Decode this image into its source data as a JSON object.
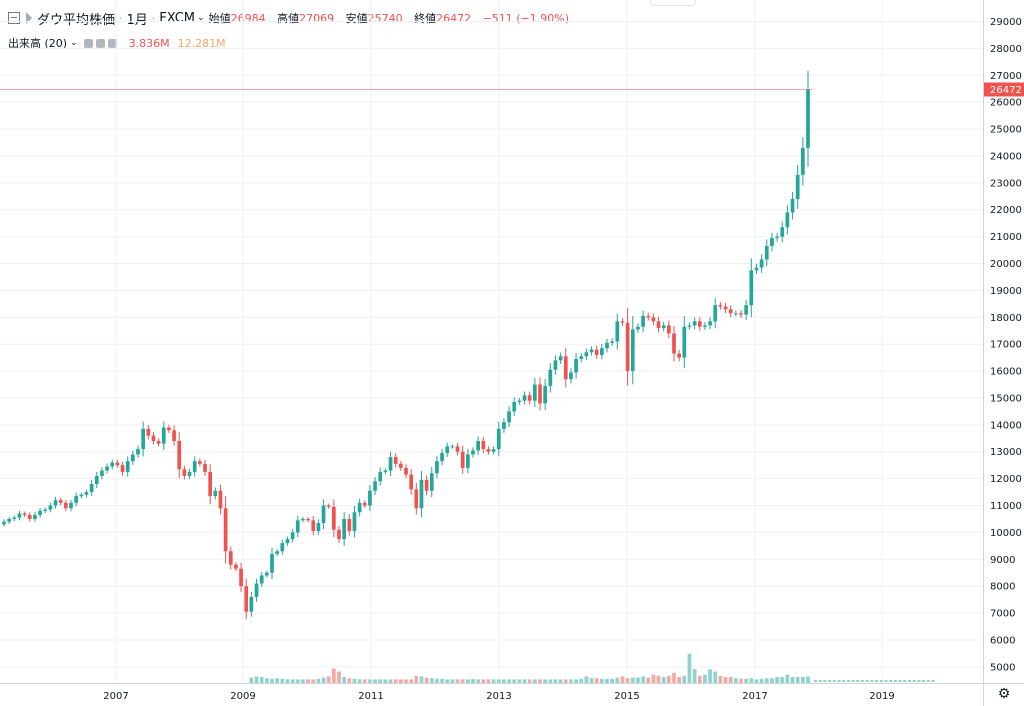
{
  "header": {
    "symbol": "ダウ平均株価",
    "interval": "1月",
    "source": "FXCM",
    "ohlc": [
      {
        "label": "始値",
        "value": "26984"
      },
      {
        "label": "高値",
        "value": "27069"
      },
      {
        "label": "安値",
        "value": "25740"
      },
      {
        "label": "終値",
        "value": "26472"
      }
    ],
    "change": "−511 (−1.90%)"
  },
  "volume": {
    "label": "出来高 (20)",
    "value1": "3.836M",
    "value2": "12.281M"
  },
  "colors": {
    "up": "#26a69a",
    "down": "#ef5350",
    "up_vol": "#8fd3cc",
    "down_vol": "#f4a9a7",
    "grid": "#eef0f3",
    "price_line": "#ef5350"
  },
  "chart_data": {
    "type": "candlestick",
    "interval": "monthly",
    "ylim": [
      4400,
      29800
    ],
    "y_ticks": [
      5000,
      6000,
      7000,
      8000,
      9000,
      10000,
      11000,
      12000,
      13000,
      14000,
      15000,
      16000,
      17000,
      18000,
      19000,
      20000,
      21000,
      22000,
      23000,
      24000,
      25000,
      26000,
      27000,
      28000,
      29000
    ],
    "x_ticks": [
      "2007",
      "2009",
      "2011",
      "2013",
      "2015",
      "2017",
      "2019"
    ],
    "last_price_label": "26472",
    "last_price": 26472,
    "closes": [
      10400,
      10500,
      10550,
      10700,
      10650,
      10500,
      10650,
      10800,
      10850,
      11000,
      11200,
      11100,
      10900,
      11100,
      11350,
      11400,
      11500,
      11800,
      12100,
      12300,
      12450,
      12600,
      12500,
      12250,
      12650,
      12900,
      13100,
      13850,
      13600,
      13400,
      13300,
      13900,
      13800,
      13400,
      12350,
      12100,
      12250,
      12650,
      12550,
      12250,
      11350,
      11550,
      10900,
      9300,
      8800,
      8650,
      8000,
      7050,
      7600,
      8100,
      8400,
      8500,
      9200,
      9300,
      9600,
      9750,
      10000,
      10450,
      10500,
      10450,
      10050,
      10350,
      11000,
      10950,
      10100,
      9750,
      10500,
      10050,
      10750,
      11100,
      11000,
      11550,
      11900,
      12250,
      12300,
      12800,
      12550,
      12400,
      12150,
      11600,
      10900,
      11950,
      11550,
      12200,
      12650,
      12950,
      13200,
      13200,
      13000,
      12400,
      12900,
      13050,
      13400,
      13100,
      13000,
      13100,
      13850,
      14100,
      14500,
      14850,
      14900,
      15100,
      14900,
      15500,
      14800,
      15450,
      16050,
      16400,
      16550,
      15700,
      15950,
      16450,
      16550,
      16700,
      16800,
      16600,
      16850,
      17050,
      17100,
      17850,
      17800,
      16000,
      17550,
      17650,
      18050,
      18000,
      17850,
      17600,
      17700,
      17400,
      16650,
      16500,
      17650,
      17700,
      17850,
      17650,
      17700,
      17850,
      18450,
      18400,
      18300,
      18150,
      18150,
      18100,
      18450,
      19750,
      19850,
      20150,
      20650,
      20950,
      21000,
      21350,
      21900,
      22400,
      23300,
      24300,
      26472
    ],
    "volume": [
      0,
      0,
      0,
      0,
      0,
      0,
      0,
      0,
      0,
      0,
      0,
      0,
      0,
      0,
      0,
      0,
      0,
      0,
      0,
      0,
      0,
      0,
      0,
      0,
      0,
      0,
      0,
      0,
      0,
      0,
      0,
      0,
      0,
      0,
      0,
      0,
      0,
      0,
      0,
      0,
      0,
      0,
      0,
      0,
      0,
      0,
      0,
      0,
      0.18,
      0.22,
      0.2,
      0.16,
      0.14,
      0.16,
      0.14,
      0.12,
      0.12,
      0.12,
      0.12,
      0.12,
      0.12,
      0.14,
      0.18,
      0.22,
      0.48,
      0.38,
      0.2,
      0.16,
      0.14,
      0.12,
      0.12,
      0.12,
      0.12,
      0.12,
      0.12,
      0.12,
      0.12,
      0.12,
      0.12,
      0.12,
      0.24,
      0.22,
      0.18,
      0.16,
      0.14,
      0.14,
      0.12,
      0.12,
      0.12,
      0.12,
      0.12,
      0.14,
      0.12,
      0.12,
      0.12,
      0.12,
      0.12,
      0.12,
      0.12,
      0.12,
      0.12,
      0.12,
      0.12,
      0.12,
      0.12,
      0.12,
      0.12,
      0.12,
      0.12,
      0.12,
      0.12,
      0.12,
      0.14,
      0.22,
      0.16,
      0.16,
      0.14,
      0.14,
      0.14,
      0.18,
      0.22,
      0.16,
      0.18,
      0.18,
      0.22,
      0.18,
      0.28,
      0.24,
      0.2,
      0.24,
      0.34,
      0.2,
      0.24,
      0.98,
      0.46,
      0.24,
      0.28,
      0.46,
      0.38,
      0.24,
      0.2,
      0.2,
      0.16,
      0.14,
      0.14,
      0.16,
      0.12,
      0.14,
      0.16,
      0.16,
      0.2,
      0.2,
      0.28,
      0.2,
      0.2,
      0.2,
      0.22,
      0.22,
      0.22,
      0.22,
      0.22,
      0.22,
      0.22,
      0.26,
      0.3,
      0.3
    ],
    "volume_axis_max": 1.0,
    "volume_note": "volume bars are relative heights (0-1 of pane max)"
  }
}
